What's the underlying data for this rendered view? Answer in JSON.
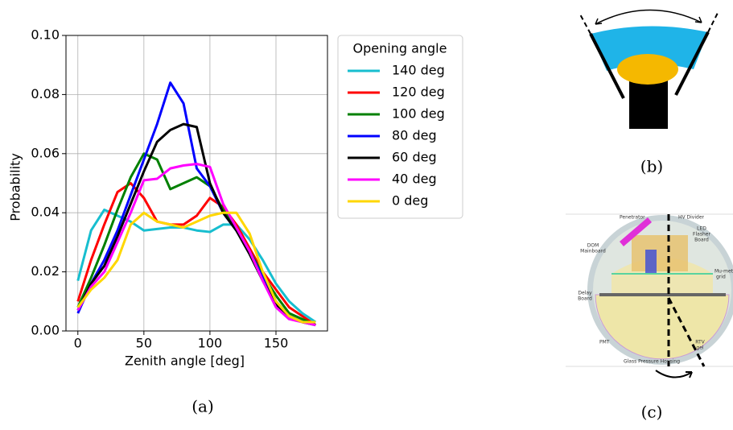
{
  "chart_data": {
    "type": "line",
    "xlabel": "Zenith angle [deg]",
    "ylabel": "Probability",
    "legend_title": "Opening angle",
    "x": [
      0,
      10,
      20,
      30,
      40,
      50,
      60,
      70,
      80,
      90,
      100,
      110,
      120,
      130,
      140,
      150,
      160,
      170,
      180
    ],
    "xlim": [
      -9,
      189
    ],
    "xticks": [
      0,
      50,
      100,
      150
    ],
    "ylim": [
      0,
      0.1
    ],
    "yticks": [
      {
        "value": 0,
        "label": "0.00"
      },
      {
        "value": 0.02,
        "label": "0.02"
      },
      {
        "value": 0.04,
        "label": "0.04"
      },
      {
        "value": 0.06,
        "label": "0.06"
      },
      {
        "value": 0.08,
        "label": "0.08"
      },
      {
        "value": 0.1,
        "label": "0.10"
      }
    ],
    "grid": true,
    "series": [
      {
        "name": "140 deg",
        "color": "#17becf",
        "values": [
          0.017,
          0.034,
          0.041,
          0.039,
          0.037,
          0.034,
          0.0345,
          0.035,
          0.035,
          0.034,
          0.0335,
          0.036,
          0.036,
          0.031,
          0.024,
          0.016,
          0.01,
          0.006,
          0.003
        ]
      },
      {
        "name": "120 deg",
        "color": "#ff0000",
        "values": [
          0.01,
          0.024,
          0.036,
          0.047,
          0.05,
          0.045,
          0.037,
          0.036,
          0.036,
          0.039,
          0.045,
          0.042,
          0.036,
          0.028,
          0.02,
          0.014,
          0.008,
          0.005,
          0.002
        ]
      },
      {
        "name": "100 deg",
        "color": "#008000",
        "values": [
          0.008,
          0.018,
          0.029,
          0.041,
          0.052,
          0.06,
          0.058,
          0.048,
          0.05,
          0.052,
          0.049,
          0.041,
          0.035,
          0.027,
          0.019,
          0.012,
          0.006,
          0.004,
          0.002
        ]
      },
      {
        "name": "80 deg",
        "color": "#0000ff",
        "values": [
          0.006,
          0.016,
          0.024,
          0.034,
          0.046,
          0.058,
          0.07,
          0.084,
          0.077,
          0.055,
          0.049,
          0.04,
          0.034,
          0.027,
          0.018,
          0.01,
          0.005,
          0.003,
          0.002
        ]
      },
      {
        "name": "60 deg",
        "color": "#000000",
        "values": [
          0.007,
          0.016,
          0.022,
          0.032,
          0.043,
          0.054,
          0.064,
          0.068,
          0.07,
          0.069,
          0.05,
          0.04,
          0.034,
          0.026,
          0.017,
          0.009,
          0.005,
          0.003,
          0.002
        ]
      },
      {
        "name": "40 deg",
        "color": "#ff00ff",
        "values": [
          0.007,
          0.015,
          0.02,
          0.03,
          0.04,
          0.051,
          0.0515,
          0.055,
          0.056,
          0.0565,
          0.0555,
          0.043,
          0.035,
          0.027,
          0.017,
          0.008,
          0.004,
          0.003,
          0.002
        ]
      },
      {
        "name": "0 deg",
        "color": "#ffd700",
        "values": [
          0.008,
          0.014,
          0.018,
          0.024,
          0.036,
          0.04,
          0.037,
          0.036,
          0.035,
          0.037,
          0.039,
          0.04,
          0.04,
          0.033,
          0.02,
          0.01,
          0.005,
          0.003,
          0.003
        ]
      }
    ]
  },
  "panel_labels": [
    "(a)",
    "(b)",
    "(c)"
  ],
  "diagram_c": {
    "labels": [
      "Penetrator",
      "HV Divider",
      "LED",
      "Flasher",
      "Board",
      "DOM",
      "Mainboard",
      "Mu-metal",
      "grid",
      "Delay",
      "Board",
      "PMT",
      "RTV",
      "gel",
      "Glass Pressure Housing"
    ]
  }
}
